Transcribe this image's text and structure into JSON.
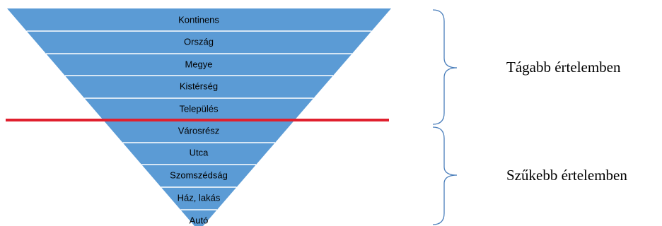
{
  "levels": [
    "Kontinens",
    "Ország",
    "Megye",
    "Kistérség",
    "Település",
    "Városrész",
    "Utca",
    "Szomszédság",
    "Ház, lakás",
    "Autó"
  ],
  "groups": {
    "broad": "Tágabb értelemben",
    "narrow": "Szűkebb értelemben"
  },
  "colors": {
    "funnel_fill": "#5b9bd5",
    "funnel_separator": "#ffffff",
    "divider_line": "#e0202e",
    "bracket": "#4a7ebb"
  }
}
